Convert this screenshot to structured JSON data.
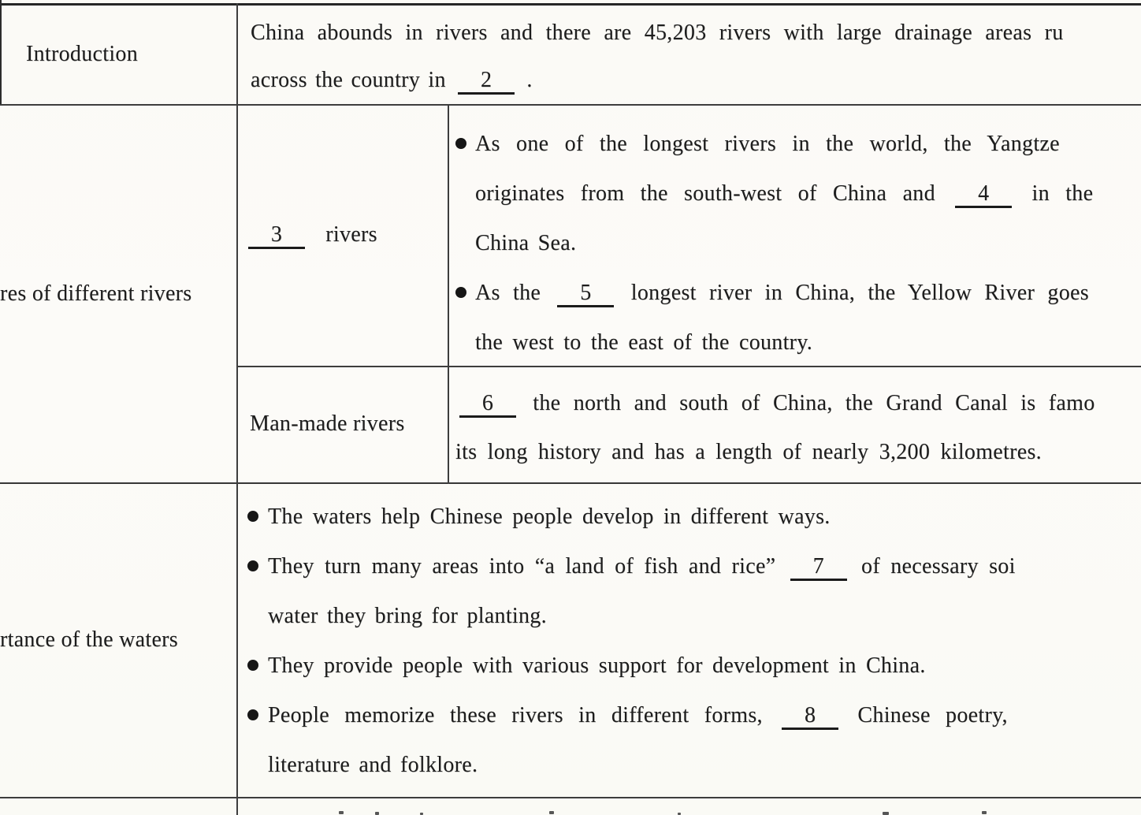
{
  "table": {
    "intro": {
      "label": "Introduction",
      "lines": [
        {
          "t": "China abounds in rivers and there are 45,203 rivers with large drainage areas ru",
          "ws": 9
        },
        {
          "t": "across the country in {{2}} .",
          "ws": 3
        }
      ]
    },
    "features": {
      "label": "res of different rivers",
      "natural": {
        "label_lines": [
          {
            "t": "{{3}} rivers",
            "ws": 14
          }
        ],
        "lines": [
          {
            "t": "As one of the longest rivers in the world, the Yangtze",
            "ws": 13,
            "b": 1
          },
          {
            "t": "originates from the south-west of China and {{4}} in the",
            "ws": 13
          },
          {
            "t": "China Sea.",
            "ws": 4
          },
          {
            "t": "As the {{5}} longest river in China, the Yellow River goes",
            "ws": 9,
            "b": 1
          },
          {
            "t": "the west to the east of the country.",
            "ws": 5
          }
        ]
      },
      "manmade": {
        "label": "Man-made rivers",
        "lines": [
          {
            "t": "{{6}} the north and south of China, the Grand Canal is famo",
            "ws": 9
          },
          {
            "t": "its long history and has a length of nearly 3,200 kilometres.",
            "ws": 6
          }
        ]
      }
    },
    "importance": {
      "label": "rtance of the waters",
      "lines": [
        {
          "t": "The waters help Chinese people develop in different ways.",
          "ws": 5,
          "b": 1
        },
        {
          "t": "They turn many areas into “a land of fish and rice” {{7}} of necessary soi",
          "ws": 6,
          "b": 1
        },
        {
          "t": "water they bring for planting.",
          "ws": 4
        },
        {
          "t": "They provide people with various support for development in China.",
          "ws": 5,
          "b": 1
        },
        {
          "t": "People memorize these rivers in different forms, {{8}} Chinese poetry,",
          "ws": 12,
          "b": 1
        },
        {
          "t": "literature and folklore.",
          "ws": 4
        }
      ]
    }
  }
}
